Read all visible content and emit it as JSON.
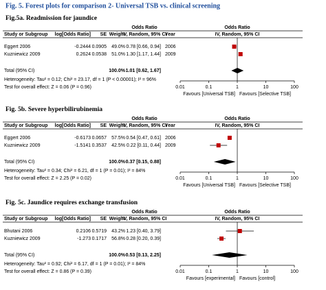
{
  "title": "Fig. 5. Forest plots for comparison 2- Universal TSB vs. clinical screening",
  "panels": [
    {
      "heading": "Fig.5a. Readmission for jaundice",
      "columns": {
        "study": "Study or Subgroup",
        "log_or": "log[Odds Ratio]",
        "se": "SE",
        "weight": "Weight",
        "or_title": "Odds Ratio",
        "or_sub": "IV, Random, 95% CI",
        "year": "Year",
        "plot_title": "Odds Ratio",
        "plot_sub": "IV, Random, 95% CI"
      },
      "rows": [
        {
          "study": "Eggert 2006",
          "log_or": "-0.2444",
          "se": "0.0905",
          "weight": "49.0%",
          "ci_text": "0.78 [0.66, 0.94]",
          "year": "2006",
          "or": 0.78,
          "lo": 0.66,
          "hi": 0.94
        },
        {
          "study": "Kuzniewicz 2009",
          "log_or": "0.2624",
          "se": "0.0538",
          "weight": "51.0%",
          "ci_text": "1.30 [1.17, 1.44]",
          "year": "2009",
          "or": 1.3,
          "lo": 1.17,
          "hi": 1.44
        }
      ],
      "total": {
        "label": "Total (95% CI)",
        "weight": "100.0%",
        "ci_text": "1.01 [0.62, 1.67]",
        "or": 1.01,
        "lo": 0.62,
        "hi": 1.67
      },
      "heterogeneity": "Heterogeneity: Tau² = 0.12; Chi² = 23.17, df = 1 (P < 0.00001); I² = 96%",
      "test": "Test for overall effect: Z = 0.06 (P = 0.96)",
      "axis": {
        "log": true,
        "xlim": [
          0.01,
          100
        ],
        "xticks": [
          0.01,
          0.1,
          1,
          10,
          100
        ]
      },
      "favours": [
        "Favours [Universal TSB]",
        "Favours [Selective TSB]"
      ]
    },
    {
      "heading": "Fig. 5b. Severe hyperbilirubinemia",
      "columns": {
        "study": "Study or Subgroup",
        "log_or": "log[Odds Ratio]",
        "se": "SE",
        "weight": "Weight",
        "or_title": "Odds Ratio",
        "or_sub": "IV, Random, 95% CI",
        "year": "Year",
        "plot_title": "Odds Ratio",
        "plot_sub": "IV, Random, 95% CI"
      },
      "rows": [
        {
          "study": "Eggert 2006",
          "log_or": "-0.6173",
          "se": "0.0657",
          "weight": "57.5%",
          "ci_text": "0.54 [0.47, 0.61]",
          "year": "2006",
          "or": 0.54,
          "lo": 0.47,
          "hi": 0.61
        },
        {
          "study": "Kuzniewicz 2009",
          "log_or": "-1.5141",
          "se": "0.3537",
          "weight": "42.5%",
          "ci_text": "0.22 [0.11, 0.44]",
          "year": "2009",
          "or": 0.22,
          "lo": 0.11,
          "hi": 0.44
        }
      ],
      "total": {
        "label": "Total (95% CI)",
        "weight": "100.0%",
        "ci_text": "0.37 [0.15, 0.88]",
        "or": 0.37,
        "lo": 0.15,
        "hi": 0.88
      },
      "heterogeneity": "Heterogeneity: Tau² = 0.34; Chi² = 6.21, df = 1 (P = 0.01); I² = 84%",
      "test": "Test for overall effect: Z = 2.25 (P = 0.02)",
      "axis": {
        "log": true,
        "xlim": [
          0.01,
          100
        ],
        "xticks": [
          0.01,
          0.1,
          1,
          10,
          100
        ]
      },
      "favours": [
        "Favours [Universal TSB]",
        "Favours [Selective TSB]"
      ]
    },
    {
      "heading": "Fig. 5c. Jaundice requires exchange transfusion",
      "columns": {
        "study": "Study or Subgroup",
        "log_or": "log[Odds Ratio]",
        "se": "SE",
        "weight": "Weight",
        "or_title": "Odds Ratio",
        "or_sub": "IV, Random, 95% CI",
        "plot_title": "Odds Ratio",
        "plot_sub": "IV, Random, 95% CI"
      },
      "rows": [
        {
          "study": "Bhutani 2006",
          "log_or": "0.2106",
          "se": "0.5719",
          "weight": "43.2%",
          "ci_text": "1.23 [0.40, 3.79]",
          "or": 1.23,
          "lo": 0.4,
          "hi": 3.79
        },
        {
          "study": "Kuzniewicz 2009",
          "log_or": "-1.273",
          "se": "0.1717",
          "weight": "56.8%",
          "ci_text": "0.28 [0.20, 0.39]",
          "or": 0.28,
          "lo": 0.2,
          "hi": 0.39
        }
      ],
      "total": {
        "label": "Total (95% CI)",
        "weight": "100.0%",
        "ci_text": "0.53 [0.13, 2.25]",
        "or": 0.53,
        "lo": 0.13,
        "hi": 2.25
      },
      "heterogeneity": "Heterogeneity: Tau² = 0.92; Chi² = 6.17, df = 1 (P = 0.01); I² = 84%",
      "test": "Test for overall effect: Z = 0.86 (P = 0.39)",
      "axis": {
        "log": true,
        "xlim": [
          0.01,
          100
        ],
        "xticks": [
          0.01,
          0.1,
          1,
          10,
          100
        ]
      },
      "favours": [
        "Favours [experimental]",
        "Favours [control]"
      ]
    }
  ]
}
